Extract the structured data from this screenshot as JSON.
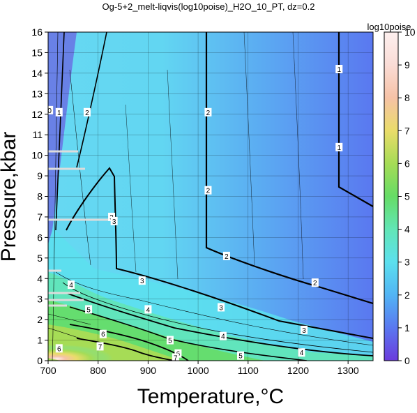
{
  "chart_data": {
    "type": "heatmap",
    "title": "Og-5+2_melt-liqvis(log10poise)_H2O_10_PT, dz=0.2",
    "xlabel": "Temperature,°C",
    "ylabel": "Pressure,kbar",
    "xlim": [
      700,
      1350
    ],
    "ylim": [
      0,
      16
    ],
    "x_ticks": [
      "700",
      "800",
      "900",
      "1000",
      "1100",
      "1200",
      "1300"
    ],
    "y_ticks": [
      "0",
      "1",
      "2",
      "3",
      "4",
      "5",
      "6",
      "7",
      "8",
      "9",
      "10",
      "11",
      "12",
      "13",
      "14",
      "15",
      "16"
    ],
    "grid": true,
    "colorbar": {
      "title": "log10poise",
      "range": [
        0,
        10
      ],
      "ticks": [
        "0",
        "1",
        "2",
        "3",
        "4",
        "5",
        "6",
        "7",
        "8",
        "9",
        "10"
      ],
      "stops": [
        {
          "value": 0,
          "color": "#6b3bdc"
        },
        {
          "value": 1,
          "color": "#5a78f0"
        },
        {
          "value": 2,
          "color": "#52b4f4"
        },
        {
          "value": 3,
          "color": "#5ce0ee"
        },
        {
          "value": 4,
          "color": "#62e6b6"
        },
        {
          "value": 5,
          "color": "#66dc66"
        },
        {
          "value": 6,
          "color": "#a6dc56"
        },
        {
          "value": 7,
          "color": "#eadc6a"
        },
        {
          "value": 8,
          "color": "#f6c2a6"
        },
        {
          "value": 9,
          "color": "#fadcd6"
        },
        {
          "value": 10,
          "color": "#fdf0ef"
        }
      ]
    },
    "contour_labels": [
      {
        "text": "0",
        "x": 703,
        "y": 12.2
      },
      {
        "text": "1",
        "x": 722,
        "y": 12.1
      },
      {
        "text": "2",
        "x": 778,
        "y": 12.1
      },
      {
        "text": "2",
        "x": 1020,
        "y": 12.1
      },
      {
        "text": "2",
        "x": 1020,
        "y": 8.3
      },
      {
        "text": "1",
        "x": 1282,
        "y": 14.2
      },
      {
        "text": "1",
        "x": 1282,
        "y": 10.4
      },
      {
        "text": "3",
        "x": 827,
        "y": 7.0
      },
      {
        "text": "3",
        "x": 832,
        "y": 6.8
      },
      {
        "text": "2",
        "x": 1057,
        "y": 5.1
      },
      {
        "text": "2",
        "x": 1234,
        "y": 3.8
      },
      {
        "text": "3",
        "x": 888,
        "y": 3.9
      },
      {
        "text": "3",
        "x": 1046,
        "y": 2.6
      },
      {
        "text": "3",
        "x": 1212,
        "y": 1.5
      },
      {
        "text": "4",
        "x": 746,
        "y": 3.7
      },
      {
        "text": "4",
        "x": 900,
        "y": 2.5
      },
      {
        "text": "4",
        "x": 1050,
        "y": 1.2
      },
      {
        "text": "4",
        "x": 1207,
        "y": 0.4
      },
      {
        "text": "5",
        "x": 781,
        "y": 2.5
      },
      {
        "text": "5",
        "x": 944,
        "y": 1.0
      },
      {
        "text": "5",
        "x": 1085,
        "y": 0.25
      },
      {
        "text": "6",
        "x": 810,
        "y": 1.3
      },
      {
        "text": "6",
        "x": 722,
        "y": 0.6
      },
      {
        "text": "6",
        "x": 960,
        "y": 0.35
      },
      {
        "text": "7",
        "x": 804,
        "y": 0.7
      },
      {
        "text": "7",
        "x": 955,
        "y": 0.15
      }
    ]
  }
}
